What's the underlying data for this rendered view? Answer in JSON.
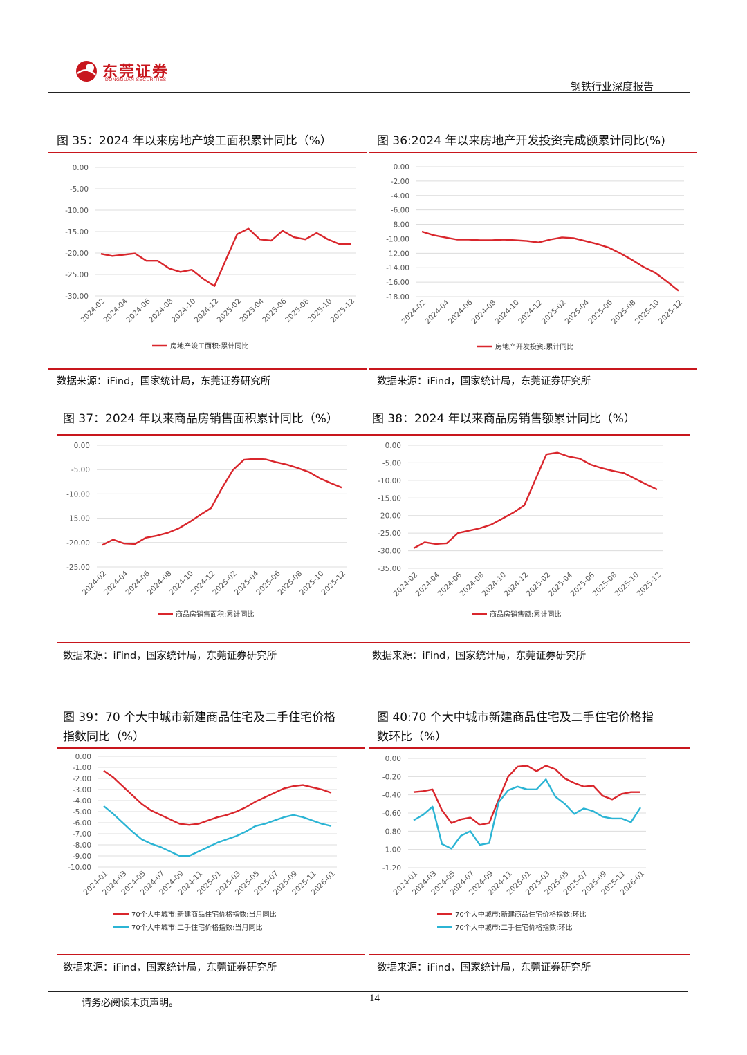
{
  "header": {
    "logo_text": "东莞证券",
    "logo_sub": "DONGGUAN SECURITIES",
    "report_title": "钢铁行业深度报告"
  },
  "colors": {
    "red": "#d9262c",
    "cyan": "#2bb4d4",
    "brand": "#c8161d"
  },
  "figures": [
    {
      "title": "图 35：2024 年以来房地产竣工面积累计同比（%）",
      "source": "数据来源：iFind，国家统计局，东莞证券研究所"
    },
    {
      "title": "图 36:2024 年以来房地产开发投资完成额累计同比(%)",
      "source": "数据来源：iFind，国家统计局，东莞证券研究所"
    },
    {
      "title": "图 37：2024 年以来商品房销售面积累计同比（%）",
      "source": "数据来源：iFind，国家统计局，东莞证券研究所"
    },
    {
      "title": "图 38：2024 年以来商品房销售额累计同比（%）",
      "source": "数据来源：iFind，国家统计局，东莞证券研究所"
    },
    {
      "title_line1": "图 39：70 个大中城市新建商品住宅及二手住宅价格",
      "title_line2": "指数同比（%）",
      "source": "数据来源：iFind，国家统计局，东莞证券研究所"
    },
    {
      "title_line1": "图 40:70 个大中城市新建商品住宅及二手住宅价格指",
      "title_line2": "数环比（%）",
      "source": "数据来源：iFind，国家统计局，东莞证券研究所"
    }
  ],
  "footer": {
    "note": "请务必阅读末页声明。",
    "page": "14"
  },
  "chart_data": [
    {
      "type": "line",
      "yticks": [
        "0.00",
        "-5.00",
        "-10.00",
        "-15.00",
        "-20.00",
        "-25.00",
        "-30.00"
      ],
      "ylim": [
        -30,
        0
      ],
      "xlabels": [
        "2024-02",
        "2024-04",
        "2024-06",
        "2024-08",
        "2024-10",
        "2024-12",
        "2025-02",
        "2025-04",
        "2025-06",
        "2025-08",
        "2025-10",
        "2025-12"
      ],
      "series": [
        {
          "name": "房地产竣工面积:累计同比",
          "color": "red",
          "values": [
            -20.2,
            -20.7,
            -20.4,
            -20.1,
            -21.8,
            -21.8,
            -23.6,
            -24.4,
            -23.9,
            -26.0,
            -27.7,
            -21.6,
            -15.6,
            -14.3,
            -16.8,
            -17.1,
            -14.8,
            -16.3,
            -16.8,
            -15.3,
            -16.8,
            -17.9,
            -17.9
          ]
        }
      ]
    },
    {
      "type": "line",
      "yticks": [
        "0.00",
        "-2.00",
        "-4.00",
        "-6.00",
        "-8.00",
        "-10.00",
        "-12.00",
        "-14.00",
        "-16.00",
        "-18.00"
      ],
      "ylim": [
        -18,
        0
      ],
      "xlabels": [
        "2024-02",
        "2024-04",
        "2024-06",
        "2024-08",
        "2024-10",
        "2024-12",
        "2025-02",
        "2025-04",
        "2025-06",
        "2025-08",
        "2025-10",
        "2025-12"
      ],
      "series": [
        {
          "name": "房地产开发投资:累计同比",
          "color": "red",
          "values": [
            -9.0,
            -9.5,
            -9.8,
            -10.1,
            -10.1,
            -10.2,
            -10.2,
            -10.1,
            -10.2,
            -10.3,
            -10.5,
            -10.1,
            -9.8,
            -9.9,
            -10.3,
            -10.7,
            -11.2,
            -12.0,
            -12.9,
            -13.9,
            -14.7,
            -15.9,
            -17.2
          ]
        }
      ]
    },
    {
      "type": "line",
      "yticks": [
        "0.00",
        "-5.00",
        "-10.00",
        "-15.00",
        "-20.00",
        "-25.00"
      ],
      "ylim": [
        -25,
        0
      ],
      "xlabels": [
        "2024-02",
        "2024-04",
        "2024-06",
        "2024-08",
        "2024-10",
        "2024-12",
        "2025-02",
        "2025-04",
        "2025-06",
        "2025-08",
        "2025-10",
        "2025-12"
      ],
      "series": [
        {
          "name": "商品房销售面积:累计同比",
          "color": "red",
          "values": [
            -20.5,
            -19.4,
            -20.2,
            -20.3,
            -19.0,
            -18.6,
            -18.0,
            -17.1,
            -15.8,
            -14.3,
            -12.9,
            -8.8,
            -5.1,
            -3.0,
            -2.8,
            -2.9,
            -3.5,
            -4.0,
            -4.7,
            -5.5,
            -6.8,
            -7.8,
            -8.7
          ]
        }
      ]
    },
    {
      "type": "line",
      "yticks": [
        "0.00",
        "-5.00",
        "-10.00",
        "-15.00",
        "-20.00",
        "-25.00",
        "-30.00",
        "-35.00"
      ],
      "ylim": [
        -35,
        0
      ],
      "xlabels": [
        "2024-02",
        "2024-04",
        "2024-06",
        "2024-08",
        "2024-10",
        "2024-12",
        "2025-02",
        "2025-04",
        "2025-06",
        "2025-08",
        "2025-10",
        "2025-12"
      ],
      "series": [
        {
          "name": "商品房销售额:累计同比",
          "color": "red",
          "values": [
            -29.3,
            -27.6,
            -28.1,
            -27.9,
            -25.0,
            -24.3,
            -23.6,
            -22.6,
            -20.9,
            -19.2,
            -17.1,
            -9.8,
            -2.6,
            -2.1,
            -3.2,
            -3.8,
            -5.5,
            -6.5,
            -7.3,
            -7.9,
            -9.5,
            -11.1,
            -12.6
          ]
        }
      ]
    },
    {
      "type": "line",
      "yticks": [
        "0.00",
        "-1.00",
        "-2.00",
        "-3.00",
        "-4.00",
        "-5.00",
        "-6.00",
        "-7.00",
        "-8.00",
        "-9.00",
        "-10.00"
      ],
      "ylim": [
        -10,
        0
      ],
      "xlabels": [
        "2024-01",
        "2024-03",
        "2024-05",
        "2024-07",
        "2024-09",
        "2024-11",
        "2025-01",
        "2025-03",
        "2025-05",
        "2025-07",
        "2025-09",
        "2025-11",
        "2026-01"
      ],
      "series": [
        {
          "name": "70个大中城市:新建商品住宅价格指数:当月同比",
          "color": "red",
          "values": [
            -1.3,
            -1.9,
            -2.7,
            -3.5,
            -4.3,
            -4.9,
            -5.3,
            -5.7,
            -6.1,
            -6.2,
            -6.1,
            -5.8,
            -5.5,
            -5.3,
            -5.0,
            -4.6,
            -4.1,
            -3.7,
            -3.3,
            -2.9,
            -2.7,
            -2.6,
            -2.8,
            -3.0,
            -3.3
          ]
        },
        {
          "name": "70个大中城市:二手住宅价格指数:当月同比",
          "color": "cyan",
          "values": [
            -4.5,
            -5.2,
            -6.0,
            -6.8,
            -7.5,
            -7.9,
            -8.2,
            -8.6,
            -9.0,
            -9.0,
            -8.6,
            -8.2,
            -7.8,
            -7.5,
            -7.2,
            -6.8,
            -6.3,
            -6.1,
            -5.8,
            -5.5,
            -5.3,
            -5.5,
            -5.8,
            -6.1,
            -6.3
          ]
        }
      ]
    },
    {
      "type": "line",
      "yticks": [
        "0.00",
        "-0.20",
        "-0.40",
        "-0.60",
        "-0.80",
        "-1.00",
        "-1.20"
      ],
      "ylim": [
        -1.2,
        0
      ],
      "xlabels": [
        "2024-01",
        "2024-03",
        "2024-05",
        "2024-07",
        "2024-09",
        "2024-11",
        "2025-01",
        "2025-03",
        "2025-05",
        "2025-07",
        "2025-09",
        "2025-11",
        "2026-01"
      ],
      "series": [
        {
          "name": "70个大中城市:新建商品住宅价格指数:环比",
          "color": "red",
          "values": [
            -0.37,
            -0.36,
            -0.34,
            -0.57,
            -0.71,
            -0.67,
            -0.65,
            -0.73,
            -0.71,
            -0.45,
            -0.2,
            -0.09,
            -0.08,
            -0.14,
            -0.08,
            -0.12,
            -0.22,
            -0.27,
            -0.31,
            -0.3,
            -0.41,
            -0.45,
            -0.39,
            -0.37,
            -0.37
          ]
        },
        {
          "name": "70个大中城市:二手住宅价格指数:环比",
          "color": "cyan",
          "values": [
            -0.68,
            -0.62,
            -0.53,
            -0.94,
            -0.99,
            -0.85,
            -0.8,
            -0.95,
            -0.93,
            -0.48,
            -0.35,
            -0.31,
            -0.34,
            -0.34,
            -0.23,
            -0.42,
            -0.5,
            -0.61,
            -0.55,
            -0.58,
            -0.64,
            -0.66,
            -0.66,
            -0.7,
            -0.54
          ]
        }
      ]
    }
  ]
}
